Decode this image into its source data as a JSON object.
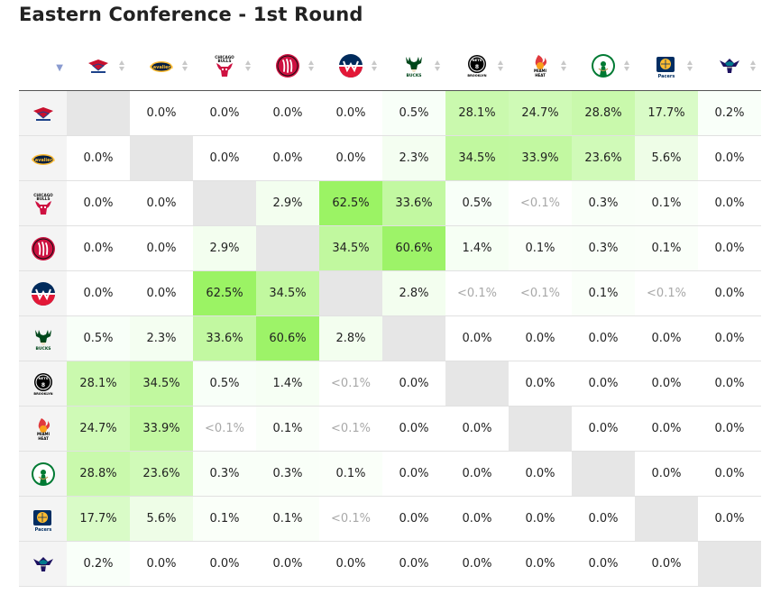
{
  "page": {
    "title": "Eastern Conference - 1st Round"
  },
  "colors": {
    "diagonal": "#e6e6e6",
    "header_bg": "#f4f4f4",
    "sort_arrow": "#8a9bd0"
  },
  "teams": [
    {
      "id": "hawks",
      "icon": "hawks-logo-icon",
      "logo_text": "ATLANTA HAWKS"
    },
    {
      "id": "cavaliers",
      "icon": "cavaliers-logo-icon",
      "logo_text": "Cavaliers"
    },
    {
      "id": "bulls",
      "icon": "bulls-logo-icon",
      "logo_text": "CHICAGO BULLS"
    },
    {
      "id": "raptors",
      "icon": "raptors-logo-icon",
      "logo_text": ""
    },
    {
      "id": "wizards",
      "icon": "wizards-logo-icon",
      "logo_text": ""
    },
    {
      "id": "bucks",
      "icon": "bucks-logo-icon",
      "logo_text": "BUCKS"
    },
    {
      "id": "nets",
      "icon": "nets-logo-icon",
      "logo_text": "NETS BROOKLYN"
    },
    {
      "id": "heat",
      "icon": "heat-logo-icon",
      "logo_text": "MIAMI HEAT"
    },
    {
      "id": "celtics",
      "icon": "celtics-logo-icon",
      "logo_text": ""
    },
    {
      "id": "pacers",
      "icon": "pacers-logo-icon",
      "logo_text": "Pacers"
    },
    {
      "id": "hornets",
      "icon": "hornets-logo-icon",
      "logo_text": ""
    }
  ],
  "matrix": [
    [
      "",
      "0.0%",
      "0.0%",
      "0.0%",
      "0.0%",
      "0.5%",
      "28.1%",
      "24.7%",
      "28.8%",
      "17.7%",
      "0.2%"
    ],
    [
      "0.0%",
      "",
      "0.0%",
      "0.0%",
      "0.0%",
      "2.3%",
      "34.5%",
      "33.9%",
      "23.6%",
      "5.6%",
      "0.0%"
    ],
    [
      "0.0%",
      "0.0%",
      "",
      "2.9%",
      "62.5%",
      "33.6%",
      "0.5%",
      "<0.1%",
      "0.3%",
      "0.1%",
      "0.0%"
    ],
    [
      "0.0%",
      "0.0%",
      "2.9%",
      "",
      "34.5%",
      "60.6%",
      "1.4%",
      "0.1%",
      "0.3%",
      "0.1%",
      "0.0%"
    ],
    [
      "0.0%",
      "0.0%",
      "62.5%",
      "34.5%",
      "",
      "2.8%",
      "<0.1%",
      "<0.1%",
      "0.1%",
      "<0.1%",
      "0.0%"
    ],
    [
      "0.5%",
      "2.3%",
      "33.6%",
      "60.6%",
      "2.8%",
      "",
      "0.0%",
      "0.0%",
      "0.0%",
      "0.0%",
      "0.0%"
    ],
    [
      "28.1%",
      "34.5%",
      "0.5%",
      "1.4%",
      "<0.1%",
      "0.0%",
      "",
      "0.0%",
      "0.0%",
      "0.0%",
      "0.0%"
    ],
    [
      "24.7%",
      "33.9%",
      "<0.1%",
      "0.1%",
      "<0.1%",
      "0.0%",
      "0.0%",
      "",
      "0.0%",
      "0.0%",
      "0.0%"
    ],
    [
      "28.8%",
      "23.6%",
      "0.3%",
      "0.3%",
      "0.1%",
      "0.0%",
      "0.0%",
      "0.0%",
      "",
      "0.0%",
      "0.0%"
    ],
    [
      "17.7%",
      "5.6%",
      "0.1%",
      "0.1%",
      "<0.1%",
      "0.0%",
      "0.0%",
      "0.0%",
      "0.0%",
      "",
      "0.0%"
    ],
    [
      "0.2%",
      "0.0%",
      "0.0%",
      "0.0%",
      "0.0%",
      "0.0%",
      "0.0%",
      "0.0%",
      "0.0%",
      "0.0%",
      ""
    ]
  ]
}
